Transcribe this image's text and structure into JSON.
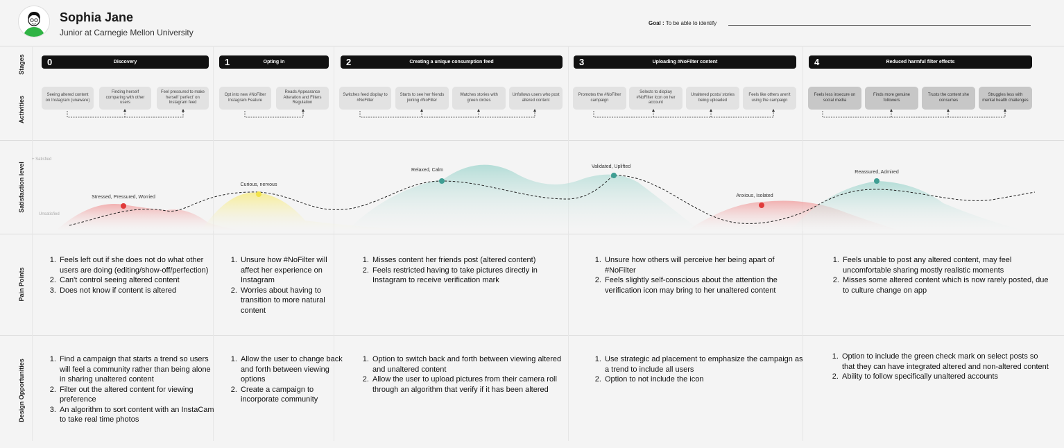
{
  "persona": {
    "name": "Sophia Jane",
    "subtitle": "Junior at Carnegie Mellon University",
    "goal_label": "Goal :",
    "goal_text": "To be able to identify"
  },
  "row_labels": {
    "stages": "Stages",
    "activities": "Activities",
    "satisfaction": "Satisfaction level",
    "pain_points": "Pain Points",
    "design_opportunities": "Design Opportunities"
  },
  "satisfaction_scale": {
    "top": "Satisfied",
    "bottom": "Unsatisfied"
  },
  "stages": [
    {
      "number": "0",
      "title": "Discovery",
      "activities": [
        "Seeing altered content on Instagram (unaware)",
        "Finding herself comparing with other users",
        "Feel pressured to make herself 'perfect' on Instagram feed"
      ],
      "emotion": {
        "label": "Stressed, Pressured, Worried",
        "color": "#e03a3a"
      },
      "pain_points": [
        "Feels left out if she does not do what other users are doing (editing/show-off/perfection)",
        "Can't control seeing altered content",
        "Does not know if content is altered"
      ],
      "opportunities": [
        "Find a campaign that starts a trend so users will feel a community rather than being alone in sharing unaltered content",
        "Filter out the altered content for viewing preference",
        "An algorithm to sort content with an InstaCam to take real time photos"
      ]
    },
    {
      "number": "1",
      "title": "Opting in",
      "activities": [
        "Opt into new #NoFilter Instagram Feature",
        "Reads Appearance Alteration and Filters Regulation"
      ],
      "emotion": {
        "label": "Curious, nervous",
        "color": "#f2e24a"
      },
      "pain_points": [
        "Unsure how #NoFilter will affect her experience on Instagram",
        "Worries about having to transition to more natural content"
      ],
      "opportunities": [
        "Allow the user to change back and forth between viewing options",
        "Create a campaign to incorporate community"
      ]
    },
    {
      "number": "2",
      "title": "Creating a unique consumption feed",
      "activities": [
        "Switches feed display to #NoFilter",
        "Starts to see her friends joining #NoFilter",
        "Watches stories with green circles",
        "Unfollows users who post altered content"
      ],
      "emotion": {
        "label": "Relaxed, Calm",
        "color": "#3f9e93"
      },
      "pain_points": [
        "Misses content her friends post (altered content)",
        "Feels restricted having to take pictures directly in Instagram to receive verification mark"
      ],
      "opportunities": [
        "Option to switch back and forth between viewing altered and unaltered content",
        "Allow the user to upload pictures from their camera roll through an algorithm that verify if it has been altered"
      ]
    },
    {
      "number": "3",
      "title": "Uploading #NoFilter content",
      "activities": [
        "Promotes the #NoFilter campaign",
        "Selects to display #NoFilter Icon on her account",
        "Unaltered posts/ stories being uploaded",
        "Feels like others aren't using the campaign"
      ],
      "emotion": {
        "label": "Validated, Uplifted",
        "color": "#3f9e93"
      },
      "emotion2": {
        "label": "Anxious, Isolated",
        "color": "#e03a3a"
      },
      "pain_points": [
        "Unsure how others will perceive her being apart of #NoFilter",
        "Feels slightly self-conscious about the attention the verification icon may bring to her unaltered content"
      ],
      "opportunities": [
        "Use strategic ad placement to emphasize the campaign as a trend to include all users",
        "Option to not include the icon"
      ]
    },
    {
      "number": "4",
      "title": "Reduced harmful filter effects",
      "activities": [
        "Feels less insecure on social media",
        "Finds more genuine followers",
        "Trusts the content she consumes",
        "Struggles less with mental health challenges"
      ],
      "emotion": {
        "label": "Reassured, Admired",
        "color": "#3f9e93"
      },
      "pain_points": [
        "Feels unable to post any altered content, may feel uncomfortable sharing mostly realistic moments",
        "Misses some altered content which is now rarely posted, due to culture change on app"
      ],
      "opportunities": [
        "Option to include the green check mark on select posts so that they can have integrated altered and non-altered content",
        "Ability to follow specifically unaltered accounts"
      ]
    }
  ]
}
